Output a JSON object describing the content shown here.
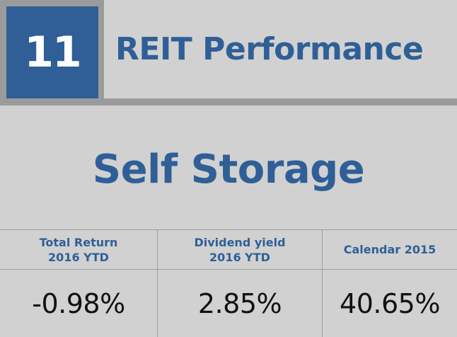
{
  "header": {
    "number": "11",
    "title": "REIT Performance"
  },
  "subtitle": "Self Storage",
  "colors": {
    "brand_blue": "#2f5f96",
    "background": "#d1d1d1",
    "frame_gray": "#9b9b9b"
  },
  "stats": {
    "columns": [
      {
        "label_line1": "Total Return",
        "label_line2": "2016 YTD",
        "value": "-0.98%"
      },
      {
        "label_line1": "Dividend yield",
        "label_line2": "2016 YTD",
        "value": "2.85%"
      },
      {
        "label_line1": "Calendar 2015",
        "label_line2": "",
        "value": "40.65%"
      }
    ]
  }
}
